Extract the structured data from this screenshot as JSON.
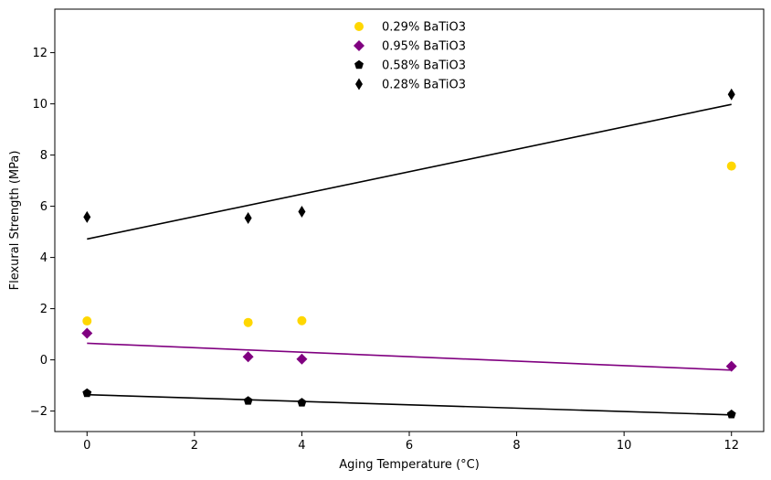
{
  "chart_data": {
    "type": "scatter",
    "title": "",
    "xlabel": "Aging Temperature (°C)",
    "ylabel": "Flexural Strength (MPa)",
    "xlim": [
      -0.6,
      12.6
    ],
    "ylim": [
      -2.8,
      13.7
    ],
    "xticks": [
      0,
      2,
      4,
      6,
      8,
      10,
      12
    ],
    "yticks": [
      -2,
      0,
      2,
      4,
      6,
      8,
      10,
      12
    ],
    "grid": false,
    "legend_position": "top-center",
    "series": [
      {
        "name": "0.29% BaTiO3",
        "marker": "circle",
        "color": "#FFD700",
        "points": [
          [
            0,
            1.52
          ],
          [
            3,
            1.46
          ],
          [
            4,
            1.53
          ],
          [
            12,
            7.57
          ]
        ]
      },
      {
        "name": "0.95% BaTiO3",
        "marker": "diamond",
        "color": "#800080",
        "points": [
          [
            0,
            1.04
          ],
          [
            3,
            0.12
          ],
          [
            4,
            0.03
          ],
          [
            12,
            -0.25
          ]
        ],
        "fit": [
          [
            0,
            0.65
          ],
          [
            12,
            -0.4
          ]
        ]
      },
      {
        "name": "0.58% BaTiO3",
        "marker": "pentagon",
        "color": "#000000",
        "points": [
          [
            0,
            -1.3
          ],
          [
            3,
            -1.6
          ],
          [
            4,
            -1.67
          ],
          [
            12,
            -2.13
          ]
        ],
        "fit": [
          [
            0,
            -1.36
          ],
          [
            12,
            -2.15
          ]
        ]
      },
      {
        "name": "0.28% BaTiO3",
        "marker": "thin_diamond",
        "color": "#000000",
        "points": [
          [
            0,
            5.58
          ],
          [
            3,
            5.54
          ],
          [
            4,
            5.79
          ],
          [
            12,
            10.37
          ]
        ],
        "fit": [
          [
            0,
            4.72
          ],
          [
            12,
            9.98
          ]
        ]
      }
    ]
  }
}
